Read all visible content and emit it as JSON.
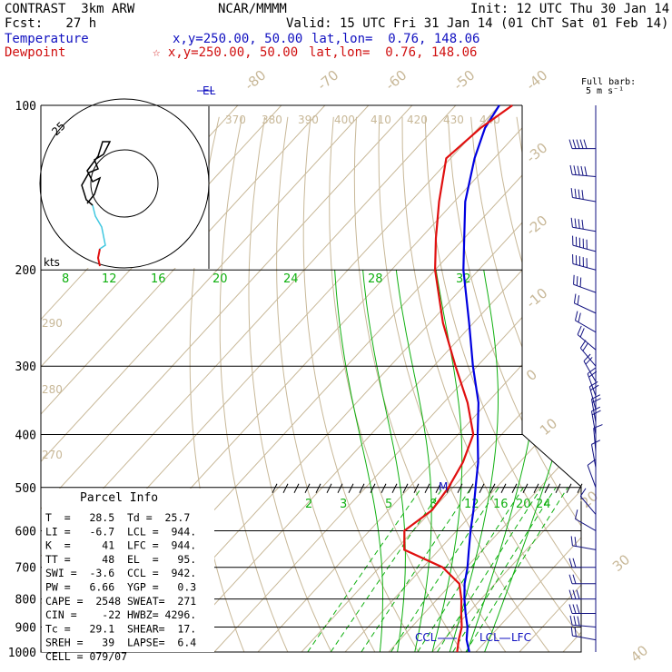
{
  "header": {
    "model": "CONTRAST  3km ARW",
    "center": "NCAR/MMMM",
    "init": "Init: 12 UTC Thu 30 Jan 14",
    "fcst": "Fcst:   27 h",
    "valid": "Valid: 15 UTC Fri 31 Jan 14 (01 ChT Sat 01 Feb 14)",
    "temp_label": "Temperature",
    "temp_xy": "x,y=250.00, 50.00",
    "temp_latlon": "lat,lon=  0.76, 148.06",
    "dew_label": "Dewpoint",
    "dew_xy": "☆ x,y=250.00, 50.00",
    "dew_latlon": "lat,lon=  0.76, 148.06",
    "barb_title_1": "Full barb:",
    "barb_title_2": "5 m s⁻¹"
  },
  "colors": {
    "temperature": "#0000e0",
    "dewpoint": "#e01010",
    "isotherm": "#c8b898",
    "mixing_ratio": "#10b010",
    "moist_adiabat": "#10b010",
    "grid": "#000000",
    "barb": "#101080",
    "hodo_low": "#e01010",
    "hodo_mid": "#40c8e0",
    "hodo_high": "#000000"
  },
  "chart_data": {
    "type": "line",
    "pressure_labels": [
      "100",
      "200",
      "300",
      "400",
      "500",
      "600",
      "700",
      "800",
      "900",
      "1000"
    ],
    "pressure_levels": [
      100,
      200,
      300,
      400,
      500,
      600,
      700,
      800,
      900,
      1000
    ],
    "isotherm_labels": [
      "-80",
      "-70",
      "-60",
      "-50",
      "-40",
      "-30",
      "-20",
      "-10",
      "0",
      "10",
      "20",
      "30",
      "40"
    ],
    "isotherm_values": [
      -80,
      -70,
      -60,
      -50,
      -40,
      -30,
      -20,
      -10,
      0,
      10,
      20,
      30,
      40
    ],
    "theta_labels": [
      "370",
      "380",
      "390",
      "400",
      "410",
      "420",
      "430",
      "440"
    ],
    "theta_side_labels": [
      "290",
      "280",
      "270"
    ],
    "theta_e_labels": [
      "8",
      "12",
      "16",
      "20",
      "24",
      "28",
      "32"
    ],
    "theta_e_values": [
      8,
      12,
      16,
      20,
      24,
      28,
      32
    ],
    "mixing_ratio_labels": [
      "2",
      "3",
      "5",
      "8",
      "12",
      "16",
      "20",
      "24"
    ],
    "mixing_ratio_values": [
      2,
      3,
      5,
      8,
      12,
      16,
      20,
      24
    ],
    "series": [
      {
        "name": "Temperature",
        "points": [
          {
            "p": 1000,
            "t": 28.5
          },
          {
            "p": 950,
            "t": 25.3
          },
          {
            "p": 900,
            "t": 22.8
          },
          {
            "p": 850,
            "t": 19.5
          },
          {
            "p": 800,
            "t": 16.2
          },
          {
            "p": 750,
            "t": 13.0
          },
          {
            "p": 700,
            "t": 10.2
          },
          {
            "p": 650,
            "t": 6.8
          },
          {
            "p": 600,
            "t": 3.2
          },
          {
            "p": 550,
            "t": -0.5
          },
          {
            "p": 500,
            "t": -4.8
          },
          {
            "p": 450,
            "t": -9.5
          },
          {
            "p": 400,
            "t": -15.5
          },
          {
            "p": 350,
            "t": -22.0
          },
          {
            "p": 300,
            "t": -31.0
          },
          {
            "p": 250,
            "t": -41.0
          },
          {
            "p": 200,
            "t": -53.5
          },
          {
            "p": 175,
            "t": -60.0
          },
          {
            "p": 150,
            "t": -67.5
          },
          {
            "p": 125,
            "t": -74.5
          },
          {
            "p": 110,
            "t": -78.5
          },
          {
            "p": 100,
            "t": -80.0
          }
        ]
      },
      {
        "name": "Dewpoint",
        "points": [
          {
            "p": 1000,
            "t": 25.7
          },
          {
            "p": 950,
            "t": 23.5
          },
          {
            "p": 900,
            "t": 21.5
          },
          {
            "p": 850,
            "t": 18.5
          },
          {
            "p": 800,
            "t": 15.5
          },
          {
            "p": 750,
            "t": 11.8
          },
          {
            "p": 700,
            "t": 4.5
          },
          {
            "p": 650,
            "t": -8.0
          },
          {
            "p": 600,
            "t": -12.0
          },
          {
            "p": 550,
            "t": -10.0
          },
          {
            "p": 500,
            "t": -11.0
          },
          {
            "p": 450,
            "t": -13.0
          },
          {
            "p": 400,
            "t": -16.5
          },
          {
            "p": 350,
            "t": -24.5
          },
          {
            "p": 300,
            "t": -35.0
          },
          {
            "p": 250,
            "t": -47.0
          },
          {
            "p": 200,
            "t": -60.0
          },
          {
            "p": 175,
            "t": -66.5
          },
          {
            "p": 150,
            "t": -73.5
          },
          {
            "p": 125,
            "t": -81.0
          },
          {
            "p": 110,
            "t": -79.5
          },
          {
            "p": 100,
            "t": -77.0
          }
        ]
      }
    ],
    "annotations": [
      "EL",
      "M",
      "CCL",
      "LCL",
      "LFC"
    ]
  },
  "parcel_info": {
    "title": "Parcel Info",
    "rows": [
      "T  =   28.5  Td =  25.7",
      "LI =   -6.7  LCL =  944.",
      "K  =     41  LFC =  944.",
      "TT =     48  EL  =   95.",
      "SWI =  -3.6  CCL =  942.",
      "PW =   6.66  YGP =   0.3",
      "CAPE =  2548 SWEAT=  271",
      "CIN =    -22 HWBZ= 4296.",
      "Tc =   29.1  SHEAR=  17.",
      "SREH =   39  LAPSE=  6.4",
      "CELL = 079/07"
    ]
  },
  "hodograph": {
    "ring_label": "25",
    "unit_label": "kts"
  },
  "wind_barbs": [
    {
      "p": 120,
      "dir": 270,
      "spd": 25
    },
    {
      "p": 135,
      "dir": 275,
      "spd": 25
    },
    {
      "p": 150,
      "dir": 280,
      "spd": 20
    },
    {
      "p": 170,
      "dir": 280,
      "spd": 20
    },
    {
      "p": 185,
      "dir": 285,
      "spd": 25
    },
    {
      "p": 200,
      "dir": 285,
      "spd": 25
    },
    {
      "p": 220,
      "dir": 290,
      "spd": 15
    },
    {
      "p": 240,
      "dir": 295,
      "spd": 10
    },
    {
      "p": 260,
      "dir": 300,
      "spd": 10
    },
    {
      "p": 280,
      "dir": 310,
      "spd": 10
    },
    {
      "p": 300,
      "dir": 320,
      "spd": 10
    },
    {
      "p": 320,
      "dir": 330,
      "spd": 10
    },
    {
      "p": 340,
      "dir": 340,
      "spd": 10
    },
    {
      "p": 360,
      "dir": 345,
      "spd": 10
    },
    {
      "p": 380,
      "dir": 350,
      "spd": 10
    },
    {
      "p": 400,
      "dir": 350,
      "spd": 10
    },
    {
      "p": 430,
      "dir": 355,
      "spd": 5
    },
    {
      "p": 460,
      "dir": 350,
      "spd": 5
    },
    {
      "p": 500,
      "dir": 340,
      "spd": 5
    },
    {
      "p": 560,
      "dir": 320,
      "spd": 5
    },
    {
      "p": 600,
      "dir": 300,
      "spd": 5
    },
    {
      "p": 650,
      "dir": 280,
      "spd": 10
    },
    {
      "p": 700,
      "dir": 270,
      "spd": 10
    },
    {
      "p": 750,
      "dir": 270,
      "spd": 10
    },
    {
      "p": 800,
      "dir": 270,
      "spd": 15
    },
    {
      "p": 850,
      "dir": 270,
      "spd": 15
    },
    {
      "p": 900,
      "dir": 275,
      "spd": 15
    },
    {
      "p": 950,
      "dir": 280,
      "spd": 10
    }
  ]
}
